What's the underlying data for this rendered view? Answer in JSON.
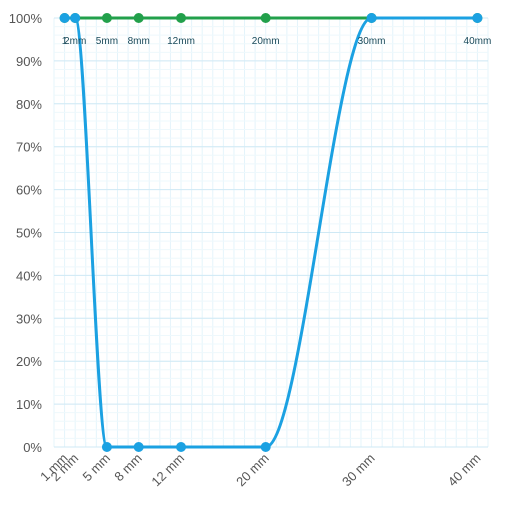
{
  "chart_data": {
    "type": "line",
    "x_unit": "mm",
    "x": [
      1,
      2,
      5,
      8,
      12,
      20,
      30,
      40
    ],
    "x_tick_labels": [
      "1 mm",
      "2 mm",
      "5 mm",
      "8 mm",
      "12 mm",
      "20 mm",
      "30 mm",
      "40 mm"
    ],
    "point_labels": [
      "1",
      "2mm",
      "5mm",
      "8mm",
      "12mm",
      "20mm",
      "30mm",
      "40mm"
    ],
    "y_ticks": [
      "0%",
      "10%",
      "20%",
      "30%",
      "40%",
      "50%",
      "60%",
      "70%",
      "80%",
      "90%",
      "100%"
    ],
    "ylim": [
      0,
      100
    ],
    "grid": true,
    "series": [
      {
        "color": "#22a04b",
        "values": [
          100,
          100,
          100,
          100,
          100,
          100,
          100,
          100
        ]
      },
      {
        "color": "#1ba1e2",
        "values": [
          100,
          100,
          0,
          0,
          0,
          0,
          100,
          100
        ]
      }
    ]
  }
}
